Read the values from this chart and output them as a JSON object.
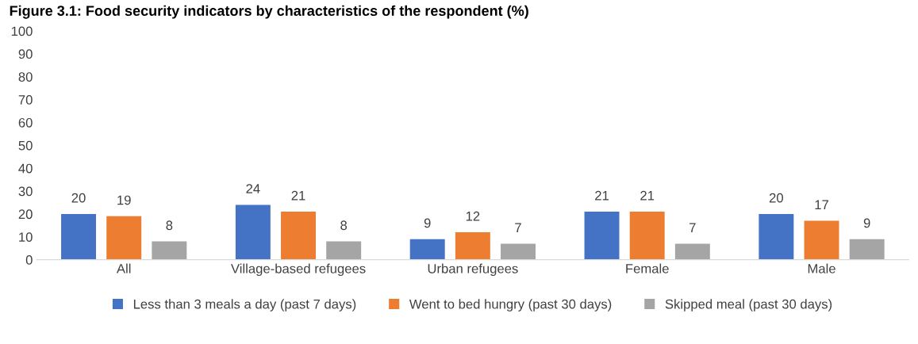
{
  "chart_data": {
    "type": "bar",
    "title": "Figure 3.1: Food security indicators by characteristics of the respondent (%)",
    "categories": [
      "All",
      "Village-based refugees",
      "Urban refugees",
      "Female",
      "Male"
    ],
    "series": [
      {
        "name": "Less than 3 meals a day (past 7 days)",
        "color": "#4472c4",
        "values": [
          20,
          24,
          9,
          21,
          20
        ]
      },
      {
        "name": "Went to bed hungry (past 30 days)",
        "color": "#ed7d31",
        "values": [
          19,
          21,
          12,
          21,
          17
        ]
      },
      {
        "name": "Skipped meal (past 30 days)",
        "color": "#a5a5a5",
        "values": [
          8,
          8,
          7,
          7,
          9
        ]
      }
    ],
    "ylim": [
      0,
      100
    ],
    "yticks": [
      0,
      10,
      20,
      30,
      40,
      50,
      60,
      70,
      80,
      90,
      100
    ],
    "grid": false,
    "legend": "bottom",
    "data_labels": true
  }
}
